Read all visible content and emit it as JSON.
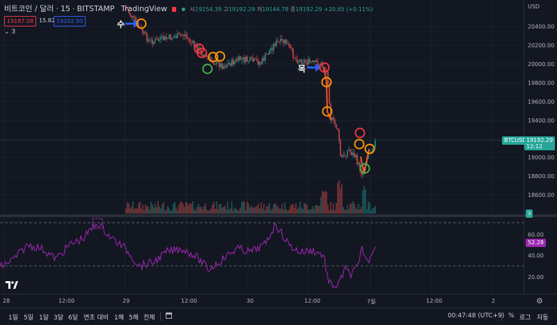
{
  "header": {
    "symbol_title": "비트코인 / 달러",
    "interval": "15",
    "exchange": "BITSTAMP",
    "source": "TradingView",
    "ohlc": {
      "open_label": "시",
      "open": "19154.39",
      "high_label": "고",
      "high": "19192.29",
      "low_label": "저",
      "low": "19144.78",
      "close_label": "종",
      "close": "19192.29",
      "change": "+20.65 (+0.11%)"
    },
    "sell_price": "19187.08",
    "spread": "15.82",
    "buy_price": "19202.90",
    "indicators_count": "3"
  },
  "price_axis": {
    "currency": "USD",
    "ticks": [
      "20400.00",
      "20200.00",
      "20000.00",
      "19800.00",
      "19600.00",
      "19400.00",
      "19000.00",
      "18800.00",
      "18600.00"
    ],
    "current_symbol": "BTCUSD",
    "current_price": "19192.29",
    "countdown": "12:12",
    "volume_badge": "3"
  },
  "rsi_axis": {
    "ticks": [
      "60.00",
      "40.00",
      "20.00"
    ],
    "current": "52.28"
  },
  "time_axis": {
    "labels": [
      "28",
      "12:00",
      "29",
      "12:00",
      "30",
      "12:00",
      "7월",
      "12:00",
      "2"
    ]
  },
  "bottom_bar": {
    "ranges": [
      "1일",
      "5일",
      "1달",
      "3달",
      "6달",
      "연초 대비",
      "1해",
      "5해",
      "전체"
    ],
    "clock": "00:47:48 (UTC+9)",
    "percent_label": "%",
    "log_label": "로그",
    "auto_label": "자동"
  },
  "annotations": {
    "buy_label": "수",
    "sell_label": "목"
  },
  "colors": {
    "bull": "#26a69a",
    "bear": "#ef5350",
    "rsi": "#9c27b0",
    "circle_red": "#f23645",
    "circle_orange": "#ff9800",
    "circle_green": "#4caf50",
    "arrow": "#2962ff",
    "trend_line": "#ff5722"
  },
  "icons": {
    "tv_logo": "tv-logo-icon",
    "settings": "gear-icon",
    "calendar": "calendar-icon",
    "collapse": "chevron-down-icon"
  }
}
